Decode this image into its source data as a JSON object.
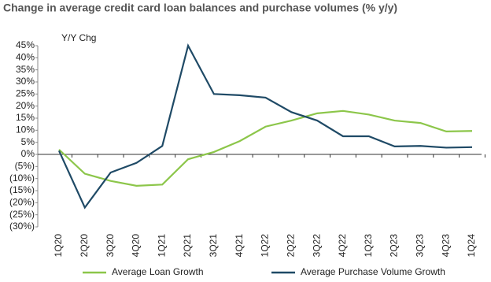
{
  "chart_data": {
    "type": "line",
    "title": "Change in average credit card loan balances and purchase volumes (% y/y)",
    "y_label": "Y/Y Chg",
    "categories": [
      "1Q20",
      "2Q20",
      "3Q20",
      "4Q20",
      "1Q21",
      "2Q21",
      "3Q21",
      "4Q21",
      "1Q22",
      "2Q22",
      "3Q22",
      "4Q22",
      "1Q23",
      "2Q23",
      "3Q23",
      "4Q23",
      "1Q24"
    ],
    "series": [
      {
        "name": "Average Loan Growth",
        "color": "#8cc64a",
        "values": [
          2,
          -8,
          -11,
          -13,
          -12.5,
          -2,
          1,
          5.5,
          11.5,
          14,
          17,
          18,
          16.5,
          14,
          13,
          9.5,
          9.7
        ]
      },
      {
        "name": "Average Purchase Volume Growth",
        "color": "#1f4a66",
        "values": [
          1.5,
          -22,
          -7.5,
          -3.5,
          3.5,
          45,
          25,
          24.5,
          23.5,
          17.5,
          14,
          7.5,
          7.5,
          3.3,
          3.5,
          2.8,
          3
        ]
      }
    ],
    "ylim": [
      -30,
      45
    ],
    "yticks": [
      {
        "value": 45,
        "label": "45%"
      },
      {
        "value": 40,
        "label": "40%"
      },
      {
        "value": 35,
        "label": "35%"
      },
      {
        "value": 30,
        "label": "30%"
      },
      {
        "value": 25,
        "label": "25%"
      },
      {
        "value": 20,
        "label": "20%"
      },
      {
        "value": 15,
        "label": "15%"
      },
      {
        "value": 10,
        "label": "10%"
      },
      {
        "value": 5,
        "label": "5%"
      },
      {
        "value": 0,
        "label": "0%"
      },
      {
        "value": -5,
        "label": "(5%)"
      },
      {
        "value": -10,
        "label": "(10%)"
      },
      {
        "value": -15,
        "label": "(15%)"
      },
      {
        "value": -20,
        "label": "(20%)"
      },
      {
        "value": -25,
        "label": "(25%)"
      },
      {
        "value": -30,
        "label": "(30%)"
      }
    ],
    "legend": "bottom"
  }
}
